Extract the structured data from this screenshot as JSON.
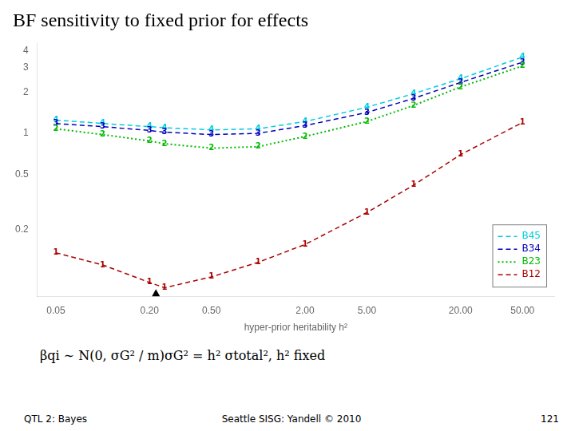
{
  "chart_data": {
    "type": "line",
    "title": "BF sensitivity to fixed prior for effects",
    "xlabel": "hyper-prior heritability h²",
    "formula": "βqi ∼ N(0, σG² / m)σG² = h² σtotal², h² fixed",
    "footer_left": "QTL 2: Bayes",
    "footer_center": "Seattle SISG: Yandell © 2010",
    "footer_right": "121",
    "log": true,
    "grid": false,
    "legend": "lower right",
    "x": [
      0.05,
      0.1,
      0.2,
      0.25,
      0.5,
      1.0,
      2.0,
      5.0,
      10.0,
      20.0,
      50.0
    ],
    "series": [
      {
        "name": "B45",
        "color": "#00CCDD",
        "line_style": "dashed",
        "marker": "4",
        "values": [
          1.25,
          1.18,
          1.12,
          1.1,
          1.06,
          1.08,
          1.22,
          1.55,
          1.95,
          2.5,
          3.6
        ]
      },
      {
        "name": "B34",
        "color": "#0000BB",
        "line_style": "dashed",
        "marker": "3",
        "values": [
          1.18,
          1.12,
          1.05,
          1.02,
          0.98,
          1.0,
          1.14,
          1.42,
          1.8,
          2.35,
          3.3
        ]
      },
      {
        "name": "B23",
        "color": "#00BB00",
        "line_style": "dotted",
        "marker": "2",
        "values": [
          1.08,
          0.98,
          0.88,
          0.84,
          0.78,
          0.8,
          0.95,
          1.22,
          1.6,
          2.18,
          3.1
        ]
      },
      {
        "name": "B12",
        "color": "#AA0000",
        "line_style": "dashed",
        "marker": "1",
        "values": [
          0.135,
          0.11,
          0.082,
          0.075,
          0.09,
          0.115,
          0.155,
          0.265,
          0.42,
          0.7,
          1.2
        ]
      }
    ],
    "xlim": [
      0.038,
      80.0
    ],
    "xticks": [
      0.05,
      {
        "value": 0.2,
        "label": "0.20"
      },
      {
        "value": 0.5,
        "label": "0.50"
      },
      {
        "value": 2.0,
        "label": "2.00"
      },
      {
        "value": 5.0,
        "label": "5.00"
      },
      {
        "value": 20.0,
        "label": "20.00"
      },
      {
        "value": 50.0,
        "label": "50.00"
      }
    ],
    "ylim": [
      0.065,
      4.5
    ],
    "yticks": [
      0.2,
      0.5,
      1,
      2,
      3,
      4
    ],
    "annotations": [
      {
        "x": 0.22,
        "marker": "triangle"
      }
    ]
  }
}
